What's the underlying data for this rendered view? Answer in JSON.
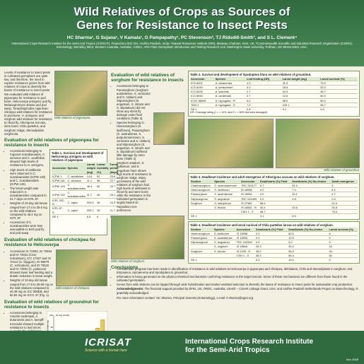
{
  "header": {
    "title_line1": "Wild Relatives of Crops as Sources of",
    "title_line2": "Genes for Resistance to Insect Pests",
    "authors": "HC Sharma¹, G Sujana¹, V Kamala¹, G Pampapathy¹, PC Stevenson², TJ Ridsdill-Smith³, and S L. Clement⁴",
    "affiliations": "¹International Crops Research Institute for the Semi-Arid Tropics (ICRISAT), Patancheru 502 324, Andhra Pradesh, India; ²Natural Resources Institute (NRI), Medway Chatham, Kent, UK; ³Commonwealth Scientific and Industrial Research Organization (CSIRO), Entomology, Wembley 6913, Western Australia, Australia; ⁴USDA, ARS Plant Germplasm Introduction and Testing Research Unit, Washington State University, Pullman, WA 99164-6402, USA."
  },
  "intro": "Levels of resistance to insect pests in cultivated germplasm are quite low, and therefore, the need to explore resistance genes from wild relatives of crops to diversify the bases of resistance to insect pests. We evaluated wild relatives of pigeonpea for resistance to pod borer, Helicoverpa armigera; pod fly, Melanagromyza obtusa and pod wasp, Tanaostigmodes cajaninae; chickpea wild relatives for resistance to pod borer, H. armigera; and sorghum wild relatives for resistance to shoot fly, Atherigona soccata, stem borer, Chilo partellus, and sorghum midge, Stenodiplosis sorghicola.",
  "photo1_caption": "Wild relatives of pigeonpea.",
  "pigeonpea": {
    "heading": "Evaluation of wild relatives of pigeonpea for resistance to insects",
    "bullets": [
      "Accessions belonging to Cajanus scarabaeoides, C. sericeus and C. acutifolius showed high levels of resistance to H. armigera.",
      "High levels of antibiosis were observed in C. scarabaeoides (ICPW 130) and C. scarabaeoides (ICPW 125).",
      "The larval weight was reduced in C. scarabaeoides compared to 21.7 days on ICPL 87.",
      "Weights of 10-day old larvae ranged from 17.4 to 25.6 mg on the wild relatives compared to 45.4 mg on ICPL 87.",
      "Accessions of C. scarabaeoides were less susceptible to both pod fly and pod wasp."
    ],
    "table_caption": "Table 1. Survival and development of Helicoverpa armigera on wild relatives of pigeonpea",
    "columns": [
      "Accession",
      "Species",
      "Larval weight (mg)",
      "Larval mortality (%)",
      "Larval period (days)"
    ],
    "rows": [
      [
        "ICPW 1",
        "C. acutifolius",
        "14.5",
        "52",
        "25.6"
      ],
      [
        "ICPW 116",
        "C. sericeus",
        "11.1",
        "56",
        "22.7"
      ],
      [
        "ICPW 125",
        "C. scarabaeoides",
        "46.4",
        "62",
        "25.7"
      ],
      [
        "ICPW 130",
        "C. scarabaeoides",
        "11.7",
        "45",
        "26.1"
      ],
      [
        "ICPL 332 - R",
        "C. cajan",
        "294.5",
        "46",
        "24.3"
      ],
      [
        "ICPL 87 - S",
        "C. cajan",
        "325.2",
        "36",
        "21.7"
      ],
      [
        "SE ±",
        "",
        "6.0",
        "6",
        "1.62"
      ]
    ]
  },
  "chickpea": {
    "heading": "Evaluation of wild relatives of chickpea for resistance to Helicoverpa",
    "bullets": [
      "Accessions IG 72933, IG 72934 and IG 72931 (Cicer reticulatum), ICC 17267 and IG 70412 (C. bijugum), IG 69979 (C. echinatum), and IG 70032 and IG 72931 (C. judaicum) showed lower leaf feeding and a drastic reduction in larval weight.",
      "Weights of 10-day old larvae ranged from 17.8 to 26.66 mg on the wild relatives compared to 46.48 mg on ICC 506EB, and 80.84 mg on ICCC 37 (Fig. 1)."
    ],
    "photo_caption": "Wild relatives of chickpea."
  },
  "groundnut": {
    "heading": "Evaluation of wild relatives of groundnut for resistance to insects",
    "bullets": [
      "Accessions belonging to Arachis cardenasii, A. duranensis and A. kempff-mercadoi showed multiple resistance to leaf miner, A. modicella, defoliators, H. armigera and S. litura and the leafhopper, E. kerri.",
      "Arachis cardenasii (ICG 8216) and A. kempff-mercadoi (ICG 8946) showed high levels of antibiosis to S. litura (Table 2)."
    ]
  },
  "figure1": {
    "caption": "Figure 1. Weights of Helicoverpa armigera larvae at 10 days after release on wild relatives of chickpea.",
    "legend": "Wt (mg) 10 DAR",
    "ylabel": "Larval weight (mg)"
  },
  "chart_data": {
    "type": "bar",
    "categories": [
      "IG 72933",
      "IG 72934",
      "IG 72931",
      "ICC 17267",
      "IG 70412",
      "IG 69979",
      "IG 70032",
      "IG 72931",
      "ICC 506EB",
      "ICCC 37"
    ],
    "values": [
      17.8,
      19.5,
      21.0,
      22.4,
      23.5,
      24.6,
      25.3,
      26.66,
      46.48,
      80.84
    ],
    "title": "",
    "xlabel": "",
    "ylabel": "Larval weight (mg)",
    "ylim": [
      0,
      100
    ]
  },
  "sorghum": {
    "heading": "Evaluation of wild relatives of sorghum for resistance to insects",
    "bullets": [
      "Accessions belonging to Parasorghum (Sorghum australiense, S. versicolor and S. nitidum) and Stiposorghum (S. angustum, S. intrans and S. stipoideum) did not show any shoot fly damage under field conditions (Table 3).",
      "Species belonging to Heterosorghum (S. laxiflorum), Parasorghum (S. australiense, S. purpureosericeum, S. versicolor and S. nitidum), and Stiposorghum (S. angustum, S. intrans and S. stipoideum) suffered little damage by stem borer (Table 3).",
      "Sorghum amplum, S. bulbosum, and S. angustum have shown high levels of resistance to sorghum midge. Many accessions of the wild relatives of sorghum had high levels of antibiosis to shoot fly and stem borer, while the resistance in the cultivated germplasm is largely based on oviposition non-preference."
    ]
  },
  "table2": {
    "caption": "Table 2. Survival and development of Spodoptera litura on wild relatives of groundnut.",
    "columns": [
      "Accession",
      "Species",
      "Leaf feeding (DR)",
      "Larval weight (mg)",
      "Larval survival (%)"
    ],
    "rows": [
      [
        "ICG 8201",
        "A. duranensis",
        "4.3",
        "31.5",
        "75.0"
      ],
      [
        "ICG 8190",
        "A. kretschmeri",
        "5.3",
        "18.5",
        "53.3"
      ],
      [
        "ICG 8206",
        "A. ipaensis",
        "2.7",
        "10.0",
        "46.7"
      ],
      [
        "ICG 8945",
        "A. cardenasii",
        "2.7",
        "12.6",
        "60.0"
      ],
      [
        "ICGV 86699",
        "A. hypogaea - R",
        "5.0",
        "88.0",
        "80.0"
      ],
      [
        "TMV 2",
        "A. hypogaea - S",
        "7.0",
        "100.1",
        "96.7"
      ],
      [
        "SE ±",
        "",
        "0.8",
        "9.2",
        "9.5"
      ]
    ],
    "note": "DR = Damage rating (1 = < 10%, and 9 = > 80% leaf area damaged)."
  },
  "photo_groundnut_caption": "Wild relatives of groundnut.",
  "photo_sorghum_caption": "Wild relatives of sorghum.",
  "table3": {
    "caption": "Table 3. Deadheart incidence and adult emergence of Atherigona soccata on wild relatives of sorghum.",
    "columns": [
      "Section",
      "Species",
      "Accession",
      "Deadhearts (%) Field",
      "Deadhearts (%) No-choice",
      "Adult emergence"
    ],
    "rows": [
      [
        "Chaetosorghum",
        "S. macrospermum",
        "TRC 243177",
        "9.7",
        "51.0",
        "5"
      ],
      [
        "Heterosorghum",
        "S. laxiflorum",
        "IS 18958",
        "0.0",
        "7.4",
        "8.1"
      ],
      [
        "Parasorghum",
        "S. australiense",
        "IS 18954",
        "0.0",
        "15.1",
        "4.7"
      ],
      [
        "Stiposorghum",
        "S. angustum",
        "TRC 243499",
        "0.0",
        "4.8",
        "0.0"
      ],
      [
        "Sorghum",
        "S. ethiopicum",
        "IS 27982",
        "58.9",
        "",
        "51.6"
      ],
      [
        "",
        "S. bicolor",
        "IS 18551 - R",
        "30.4",
        "33.8",
        "32.8"
      ],
      [
        "",
        "",
        "CSH 1 - S",
        "98.7",
        "",
        "75.4"
      ],
      [
        "SE ±",
        "",
        "",
        "3.1",
        "6.5",
        ""
      ]
    ]
  },
  "table4": {
    "caption": "Table 4. Deadheart incidence and larval survival of Chilo partellus larvae on wild relatives of sorghum.",
    "columns": [
      "Section",
      "Species",
      "Accession",
      "Deadhearts (%) Field",
      "Deadhearts (%) No-choice",
      "Larval survival (%)"
    ],
    "rows": [
      [
        "Heterosorghum",
        "S. laxiflorum",
        "IS 18958",
        "0.0",
        "60.5",
        "8"
      ],
      [
        "Parasorghum",
        "S. australiense",
        "IS 18954",
        "0.0",
        "10.5",
        "0"
      ],
      [
        "Stiposorghum",
        "S. angustum",
        "TRC 243499",
        "0.0",
        "5.0",
        "0"
      ],
      [
        "",
        "S. ungulum",
        "IS 18606",
        "34.3",
        "35.0",
        "15"
      ],
      [
        "Sorghum",
        "S. bicolor",
        "IS 2205 - R",
        "38.0",
        "95.4",
        "43"
      ],
      [
        "",
        "",
        "CSH 1 - S",
        "36.3",
        "58.4",
        "50"
      ],
      [
        "SE ±",
        "",
        "",
        "6.3",
        "18.0",
        "5"
      ]
    ]
  },
  "conclusions": {
    "heading": "Conclusions",
    "bullets": [
      "Considerable progress has been made in identification of resistance in wild relatives to Helicoverpa in pigeonpea and chickpea; defoliators, Chilo and Stenodiplosis in sorghum; and Empoasca, Aproaerema and Spodoptera in groundnut.",
      "Information is being generated on the physico-chemical mechanisms conferring resistance to the target insects. Some of these mechanisms are different from those found in the cultivated germplasm.",
      "Genes from wild relatives can be tapped through wide hybridization and marker-assisted selection to diversify the bases of resistance to insect pests for sustainable crop production."
    ],
    "ack_label": "Acknowledgments:",
    "ack": "The financial support provided by DFID, UK; ORDC, Australia; USAID – CGIAR Linkage Grant, USA; and Andhra Pradesh Netherlands Project on Biotechnology, is gratefully acknowledged.",
    "contact": "For more information contact: HC Sharma, Principal Scientist (Entomology), e-mail: h.sharma@cgiar.org"
  },
  "footer": {
    "logo_name": "ICRISAT",
    "logo_tagline": "Science with a human face",
    "inst_line1": "International Crops Research Institute",
    "inst_line2": "for the Semi-Arid Tropics",
    "date": "Nov 2008"
  },
  "colors": {
    "header_green": "#2f6b3f",
    "heading_green": "#1a6a2a",
    "background": "#f3f0e2",
    "bar_fill": "#f2c94c"
  }
}
